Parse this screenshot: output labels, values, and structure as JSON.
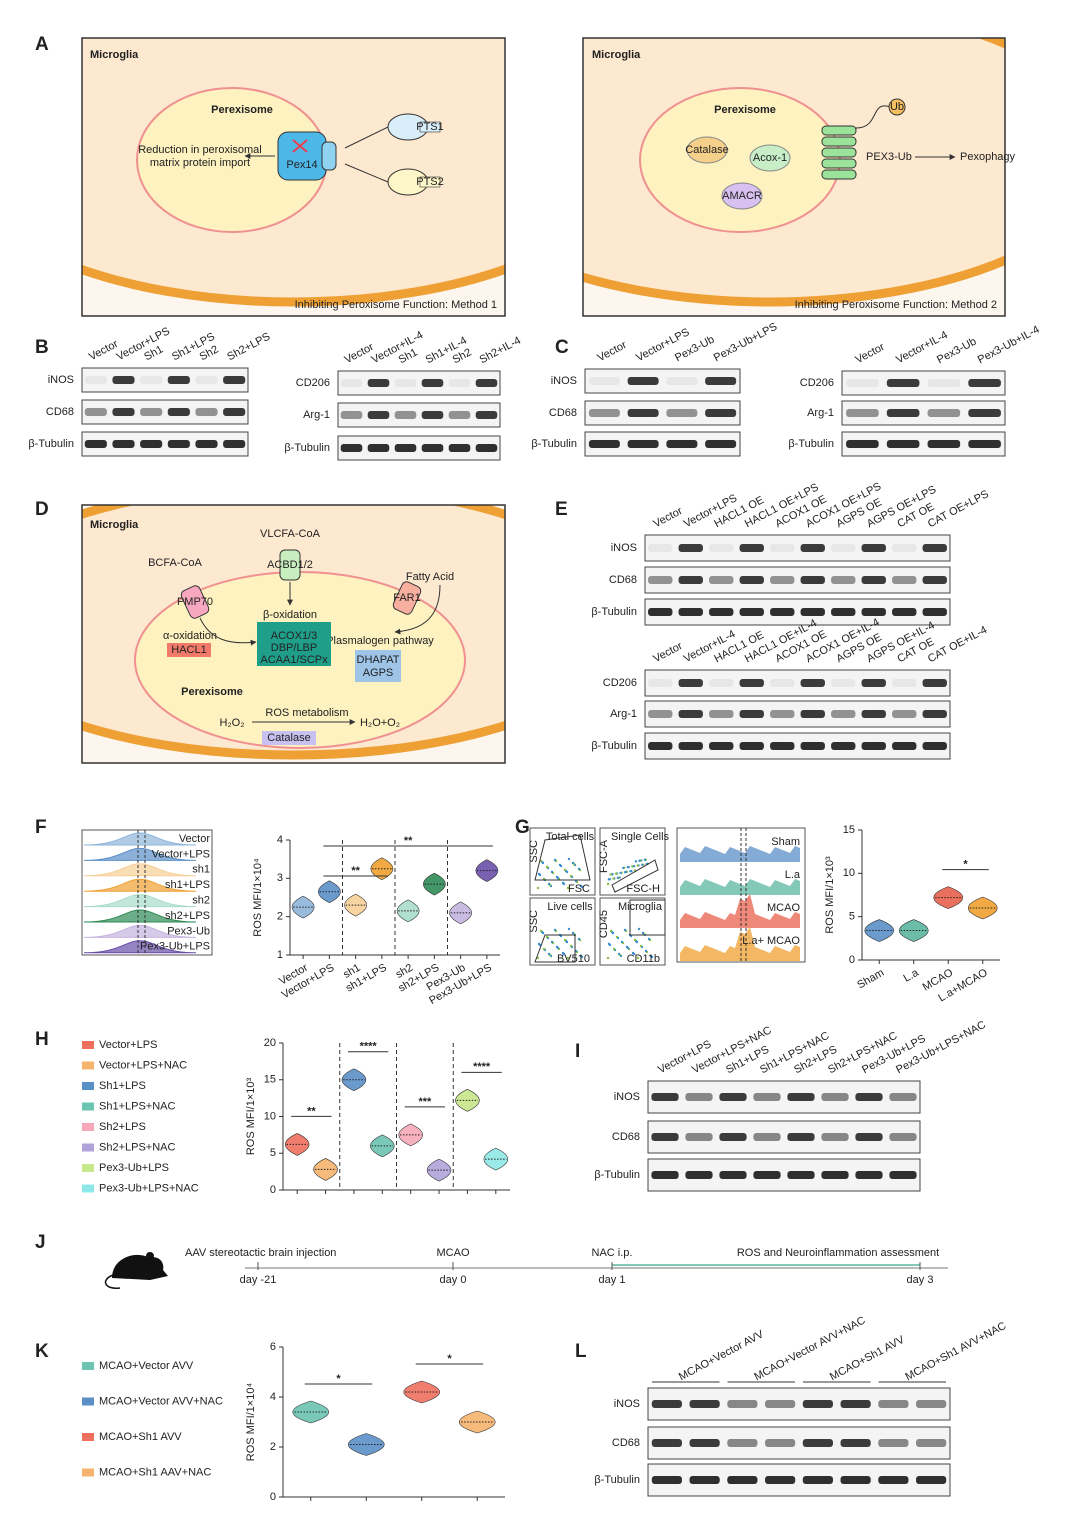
{
  "figure": {
    "A": {
      "label": "A",
      "left": {
        "title": "Microglia",
        "organelle": "Perexisome",
        "effect": [
          "Reduction in peroxisomal",
          "matrix protein import"
        ],
        "protein": "Pex14",
        "signals": [
          "PTS1",
          "PTS2"
        ],
        "caption": "Inhibiting Peroxisome Function: Method 1"
      },
      "right": {
        "title": "Microglia",
        "organelle": "Perexisome",
        "enzymes": [
          "Catalase",
          "Acox-1",
          "AMACR"
        ],
        "tag": "Ub",
        "complex": "PEX3-Ub",
        "outcome": "Pexophagy",
        "caption": "Inhibiting Peroxisome Function: Method 2"
      }
    },
    "B": {
      "label": "B",
      "blots": [
        {
          "lanes": [
            "Vector",
            "Vector+LPS",
            "Sh1",
            "Sh1+LPS",
            "Sh2",
            "Sh2+LPS"
          ],
          "rows": [
            "iNOS",
            "CD68",
            "β-Tubulin"
          ]
        },
        {
          "lanes": [
            "Vector",
            "Vector+IL-4",
            "Sh1",
            "Sh1+IL-4",
            "Sh2",
            "Sh2+IL-4"
          ],
          "rows": [
            "CD206",
            "Arg-1",
            "β-Tubulin"
          ]
        }
      ]
    },
    "C": {
      "label": "C",
      "blots": [
        {
          "lanes": [
            "Vector",
            "Vector+LPS",
            "Pex3-Ub",
            "Pex3-Ub+LPS"
          ],
          "rows": [
            "iNOS",
            "CD68",
            "β-Tubulin"
          ]
        },
        {
          "lanes": [
            "Vector",
            "Vector+IL-4",
            "Pex3-Ub",
            "Pex3-Ub+IL-4"
          ],
          "rows": [
            "CD206",
            "Arg-1",
            "β-Tubulin"
          ]
        }
      ]
    },
    "D": {
      "label": "D",
      "title": "Microglia",
      "organelle": "Perexisome",
      "substrates": [
        "BCFA-CoA",
        "VLCFA-CoA",
        "Fatty Acid"
      ],
      "transporters": [
        "PMP70",
        "ACBD1/2",
        "FAR1"
      ],
      "pathways": [
        "α-oxidation",
        "β-oxidation",
        "Plasmalogen pathway"
      ],
      "alpha_enzymes": [
        "HACL1"
      ],
      "beta_enzymes": [
        "ACOX1/3",
        "DBP/LBP",
        "ACAA1/SCPx"
      ],
      "plasmalogen_enzymes": [
        "DHAPAT",
        "AGPS"
      ],
      "ros": {
        "substrate": "H₂O₂",
        "process": "ROS metabolism",
        "product": "H₂O+O₂",
        "enzyme": "Catalase"
      }
    },
    "E": {
      "label": "E",
      "blots": [
        {
          "lanes": [
            "Vector",
            "Vector+LPS",
            "HACL1 OE",
            "HACL1 OE+LPS",
            "ACOX1 OE",
            "ACOX1 OE+LPS",
            "AGPS OE",
            "AGPS OE+LPS",
            "CAT OE",
            "CAT OE+LPS"
          ],
          "rows": [
            "iNOS",
            "CD68",
            "β-Tubulin"
          ]
        },
        {
          "lanes": [
            "Vector",
            "Vector+IL-4",
            "HACL1 OE",
            "HACL1 OE+IL-4",
            "ACOX1 OE",
            "ACOX1 OE+IL-4",
            "AGPS OE",
            "AGPS OE+IL-4",
            "CAT OE",
            "CAT OE+IL-4"
          ],
          "rows": [
            "CD206",
            "Arg-1",
            "β-Tubulin"
          ]
        }
      ]
    },
    "F": {
      "label": "F"
    },
    "G": {
      "label": "G",
      "gates": [
        {
          "name": "Total cells",
          "x": "FSC",
          "y": "SSC"
        },
        {
          "name": "Single Cells",
          "x": "FSC-H",
          "y": "FSC-A"
        },
        {
          "name": "Live cells",
          "x": "BV510",
          "y": "SSC"
        },
        {
          "name": "Microglia",
          "x": "CD11b",
          "y": "CD45"
        }
      ],
      "histogram_labels": [
        "Sham",
        "L.a",
        "MCAO",
        "L.a+ MCAO"
      ]
    },
    "H": {
      "label": "H"
    },
    "I": {
      "label": "I",
      "blots": [
        {
          "lanes": [
            "Vector+LPS",
            "Vector+LPS+NAC",
            "Sh1+LPS",
            "Sh1+LPS+NAC",
            "Sh2+LPS",
            "Sh2+LPS+NAC",
            "Pex3-Ub+LPS",
            "Pex3-Ub+LPS+NAC"
          ],
          "rows": [
            "iNOS",
            "CD68",
            "β-Tubulin"
          ]
        }
      ]
    },
    "J": {
      "label": "J",
      "events": [
        {
          "text": "AAV stereotactic brain injection",
          "day": "day -21"
        },
        {
          "text": "MCAO",
          "day": "day 0"
        },
        {
          "text": "NAC i.p.",
          "day": "day 1"
        },
        {
          "text": "ROS and Neuroinflammation assessment",
          "day": "day 3"
        }
      ]
    },
    "K": {
      "label": "K"
    },
    "L": {
      "label": "L",
      "blots": [
        {
          "lanes": [
            "MCAO+Vector AVV",
            "MCAO+Vector AVV+NAC",
            "MCAO+Sh1 AVV",
            "MCAO+Sh1 AVV+NAC"
          ],
          "rows": [
            "iNOS",
            "CD68",
            "β-Tubulin"
          ]
        }
      ]
    }
  },
  "chart_data": [
    {
      "type": "violin",
      "ylabel": "ROS MFI/1×10⁴",
      "categories": [
        "Vector",
        "Vector+LPS",
        "sh1",
        "sh1+LPS",
        "sh2",
        "sh2+LPS",
        "Pex3-Ub",
        "Pex3-Ub+LPS"
      ],
      "colors": [
        "#8fb5d8",
        "#5b8fc7",
        "#f6cf96",
        "#f0a030",
        "#a8dccb",
        "#2e8b57",
        "#c4b4e0",
        "#6a4fa8"
      ],
      "values": [
        2.25,
        2.65,
        2.3,
        3.25,
        2.15,
        2.85,
        2.1,
        3.2
      ],
      "ylim": [
        1,
        4
      ],
      "yticks": [
        1,
        2,
        3,
        4
      ],
      "annotations": [
        {
          "text": "**",
          "between": [
            "Vector+LPS",
            "Pex3-Ub+LPS"
          ]
        },
        {
          "text": "**",
          "between": [
            "Vector+LPS",
            "sh1+LPS"
          ]
        }
      ]
    },
    {
      "type": "violin",
      "ylabel": "ROS MFI/1×10³",
      "categories": [
        "Sham",
        "L.a",
        "MCAO",
        "L.a+MCAO"
      ],
      "colors": [
        "#5b8fc7",
        "#5bb5a0",
        "#e8604c",
        "#f0a030"
      ],
      "values": [
        3.4,
        3.4,
        7.2,
        6.0
      ],
      "ylim": [
        0,
        15
      ],
      "yticks": [
        0,
        5,
        10,
        15
      ],
      "annotations": [
        {
          "text": "*",
          "between": [
            "MCAO",
            "L.a+MCAO"
          ]
        }
      ]
    },
    {
      "type": "violin",
      "ylabel": "ROS MFI/1×10³",
      "legend": "left",
      "categories": [
        "Vector+LPS",
        "Vector+LPS+NAC",
        "Sh1+LPS",
        "Sh1+LPS+NAC",
        "Sh2+LPS",
        "Sh2+LPS+NAC",
        "Pex3-Ub+LPS",
        "Pex3-Ub+LPS+NAC"
      ],
      "colors": [
        "#ef6f5e",
        "#f5b36b",
        "#5b8fc7",
        "#6cc3b0",
        "#f7a8b8",
        "#b0a3d9",
        "#c8e68a",
        "#8fe8e8"
      ],
      "values": [
        6.2,
        2.8,
        15,
        6,
        7.5,
        2.7,
        12.2,
        4.2
      ],
      "ylim": [
        0,
        20
      ],
      "yticks": [
        0,
        5,
        10,
        15,
        20
      ],
      "annotations": [
        {
          "text": "**",
          "between": [
            "Vector+LPS",
            "Vector+LPS+NAC"
          ]
        },
        {
          "text": "****",
          "between": [
            "Sh1+LPS",
            "Sh1+LPS+NAC"
          ]
        },
        {
          "text": "***",
          "between": [
            "Sh2+LPS",
            "Sh2+LPS+NAC"
          ]
        },
        {
          "text": "****",
          "between": [
            "Pex3-Ub+LPS",
            "Pex3-Ub+LPS+NAC"
          ]
        }
      ]
    },
    {
      "type": "violin",
      "ylabel": "ROS MFI/1×10⁴",
      "legend": "left",
      "categories": [
        "MCAO+Vector AVV",
        "MCAO+Vector AVV+NAC",
        "MCAO+Sh1 AVV",
        "MCAO+Sh1 AAV+NAC"
      ],
      "colors": [
        "#6cc3b0",
        "#5b8fc7",
        "#ef6f5e",
        "#f5b36b"
      ],
      "values": [
        3.4,
        2.1,
        4.2,
        3.0
      ],
      "ylim": [
        0,
        6
      ],
      "yticks": [
        0,
        2,
        4,
        6
      ],
      "annotations": [
        {
          "text": "*",
          "between": [
            "MCAO+Vector AVV",
            "MCAO+Vector AVV+NAC"
          ]
        },
        {
          "text": "*",
          "between": [
            "MCAO+Sh1 AVV",
            "MCAO+Sh1 AAV+NAC"
          ]
        }
      ]
    }
  ]
}
